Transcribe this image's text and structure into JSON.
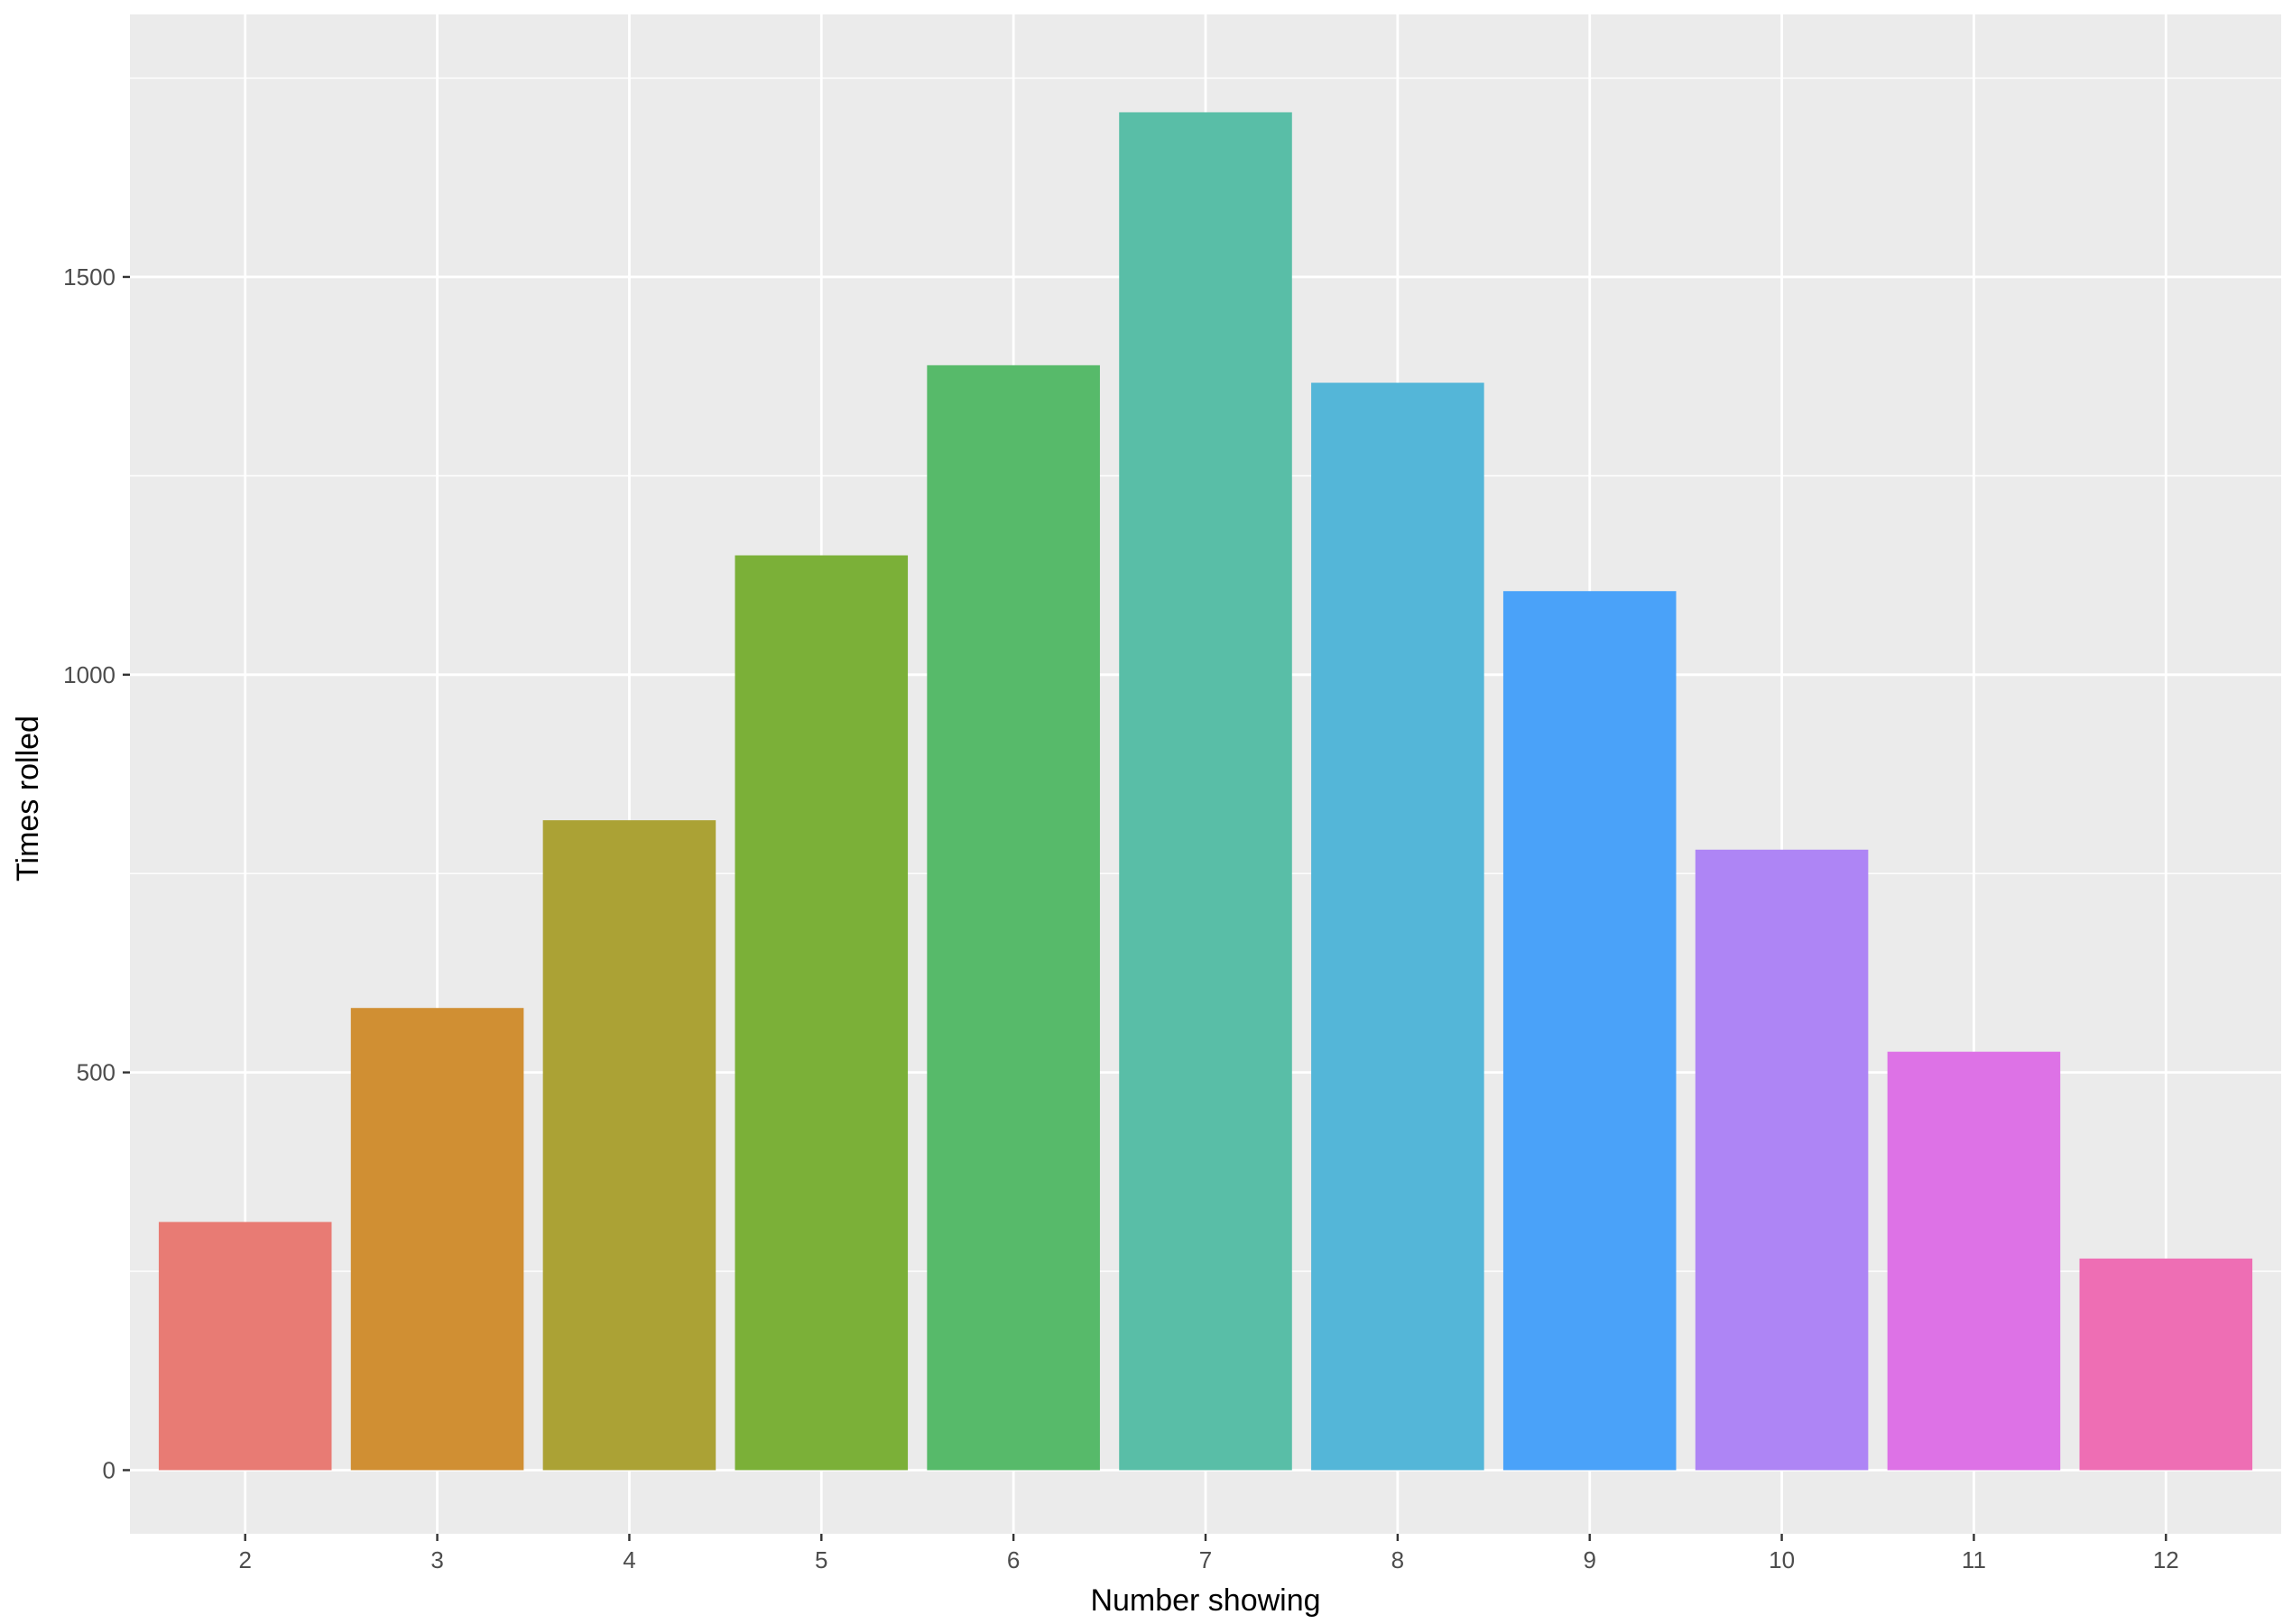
{
  "chart_data": {
    "type": "bar",
    "title": "",
    "xlabel": "Number showing",
    "ylabel": "Times rolled",
    "categories": [
      "2",
      "3",
      "4",
      "5",
      "6",
      "7",
      "8",
      "9",
      "10",
      "11",
      "12"
    ],
    "values": [
      312,
      581,
      817,
      1150,
      1389,
      1707,
      1367,
      1105,
      780,
      526,
      266
    ],
    "bar_colors": [
      "#E87B74",
      "#D08F33",
      "#ABA235",
      "#7BB038",
      "#57BA6A",
      "#59BEA7",
      "#54B6D8",
      "#4AA2F9",
      "#AE85F5",
      "#DD72E6",
      "#EE6EB4"
    ],
    "ylim": [
      -80,
      1830
    ],
    "yticks": [
      0,
      500,
      1000,
      1500
    ],
    "y_minor_ticks": [
      250,
      750,
      1250,
      1750
    ],
    "grid": true,
    "panel_background": "#EBEBEB",
    "grid_color": "#FFFFFF",
    "legend": "none"
  }
}
